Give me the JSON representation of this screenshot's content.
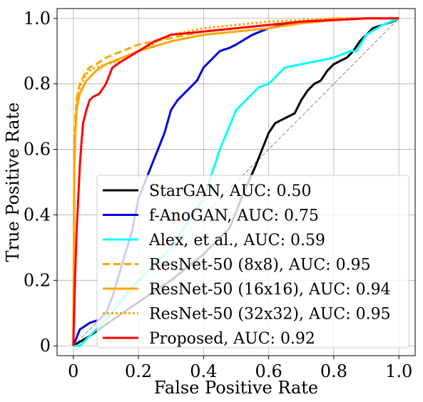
{
  "chart_data": {
    "type": "line",
    "title": "",
    "xlabel": "False Positive Rate",
    "ylabel": "True Positive Rate",
    "xlim": [
      -0.05,
      1.05
    ],
    "ylim": [
      -0.03,
      1.03
    ],
    "x_ticks": [
      0,
      0.2,
      0.4,
      0.6,
      0.8,
      1.0
    ],
    "x_tick_labels": [
      "0",
      "0.2",
      "0.4",
      "0.6",
      "0.8",
      "1.0"
    ],
    "y_ticks": [
      0,
      0.2,
      0.4,
      0.6,
      0.8,
      1.0
    ],
    "y_tick_labels": [
      "0",
      "0.2",
      "0.4",
      "0.6",
      "0.8",
      "1.0"
    ],
    "grid": true,
    "legend_position": "lower-right",
    "diagonal": {
      "x": [
        0,
        1
      ],
      "y": [
        0,
        1
      ],
      "color": "#808080",
      "dash": "dashed"
    },
    "series": [
      {
        "name": "StarGAN, AUC: 0.50",
        "color": "#000000",
        "dash": "solid",
        "x": [
          0,
          0.05,
          0.15,
          0.3,
          0.4,
          0.48,
          0.52,
          0.56,
          0.58,
          0.6,
          0.62,
          0.64,
          0.68,
          0.7,
          0.72,
          0.74,
          0.76,
          0.78,
          0.8,
          0.82,
          0.84,
          0.86,
          0.88,
          0.9,
          0.92,
          0.95,
          0.98,
          1.0
        ],
        "y": [
          0,
          0.03,
          0.1,
          0.2,
          0.28,
          0.36,
          0.46,
          0.55,
          0.6,
          0.65,
          0.68,
          0.69,
          0.71,
          0.75,
          0.78,
          0.8,
          0.81,
          0.84,
          0.86,
          0.87,
          0.88,
          0.9,
          0.93,
          0.95,
          0.97,
          0.98,
          0.99,
          1.0
        ]
      },
      {
        "name": "f-AnoGAN, AUC: 0.75",
        "color": "#0000e6",
        "dash": "solid",
        "x": [
          0,
          0.02,
          0.05,
          0.08,
          0.1,
          0.12,
          0.15,
          0.18,
          0.2,
          0.22,
          0.24,
          0.26,
          0.28,
          0.3,
          0.32,
          0.35,
          0.38,
          0.4,
          0.42,
          0.45,
          0.48,
          0.5,
          0.55,
          0.6,
          0.7,
          0.8,
          0.9,
          1.0
        ],
        "y": [
          0,
          0.05,
          0.07,
          0.08,
          0.1,
          0.15,
          0.25,
          0.35,
          0.45,
          0.5,
          0.55,
          0.6,
          0.65,
          0.72,
          0.75,
          0.78,
          0.81,
          0.85,
          0.87,
          0.9,
          0.91,
          0.92,
          0.95,
          0.97,
          0.99,
          0.995,
          1.0,
          1.0
        ]
      },
      {
        "name": "Alex, et al., AUC: 0.59",
        "color": "#00ffff",
        "dash": "solid",
        "x": [
          0,
          0.02,
          0.05,
          0.1,
          0.2,
          0.3,
          0.4,
          0.45,
          0.5,
          0.55,
          0.57,
          0.6,
          0.65,
          0.7,
          0.75,
          0.8,
          0.85,
          0.87,
          0.9,
          0.95,
          1.0
        ],
        "y": [
          0,
          0.0,
          0.03,
          0.08,
          0.2,
          0.3,
          0.45,
          0.6,
          0.72,
          0.77,
          0.79,
          0.8,
          0.85,
          0.86,
          0.87,
          0.88,
          0.9,
          0.9,
          0.95,
          0.98,
          1.0
        ]
      },
      {
        "name": "ResNet-50 (8x8), AUC: 0.95",
        "color": "#ffa500",
        "dash": "dashed",
        "x": [
          0,
          0.003,
          0.006,
          0.01,
          0.015,
          0.02,
          0.03,
          0.04,
          0.05,
          0.07,
          0.1,
          0.15,
          0.2,
          0.3,
          0.4,
          0.5,
          0.6,
          0.7,
          0.8,
          0.9,
          1.0
        ],
        "y": [
          0,
          0.62,
          0.7,
          0.75,
          0.78,
          0.8,
          0.82,
          0.84,
          0.85,
          0.86,
          0.88,
          0.9,
          0.92,
          0.94,
          0.96,
          0.97,
          0.98,
          0.99,
          1.0,
          1.0,
          1.0
        ]
      },
      {
        "name": "ResNet-50 (16x16), AUC: 0.94",
        "color": "#ffa500",
        "dash": "solid",
        "x": [
          0,
          0.003,
          0.006,
          0.01,
          0.015,
          0.02,
          0.03,
          0.04,
          0.05,
          0.07,
          0.1,
          0.15,
          0.2,
          0.3,
          0.4,
          0.5,
          0.6,
          0.7,
          0.8,
          0.9,
          1.0
        ],
        "y": [
          0,
          0.55,
          0.65,
          0.72,
          0.75,
          0.77,
          0.79,
          0.81,
          0.82,
          0.84,
          0.86,
          0.88,
          0.9,
          0.93,
          0.95,
          0.96,
          0.97,
          0.985,
          0.995,
          1.0,
          1.0
        ]
      },
      {
        "name": "ResNet-50 (32x32), AUC: 0.95",
        "color": "#ffa500",
        "dash": "dotted",
        "x": [
          0,
          0.003,
          0.006,
          0.01,
          0.015,
          0.02,
          0.03,
          0.04,
          0.05,
          0.07,
          0.1,
          0.15,
          0.2,
          0.3,
          0.4,
          0.5,
          0.6,
          0.7,
          0.8,
          0.9,
          1.0
        ],
        "y": [
          0,
          0.6,
          0.68,
          0.74,
          0.77,
          0.79,
          0.81,
          0.83,
          0.84,
          0.85,
          0.86,
          0.87,
          0.9,
          0.95,
          0.97,
          0.98,
          0.99,
          0.995,
          1.0,
          1.0,
          1.0
        ]
      },
      {
        "name": "Proposed, AUC: 0.92",
        "color": "#ff0000",
        "dash": "solid",
        "x": [
          0,
          0.005,
          0.01,
          0.015,
          0.02,
          0.025,
          0.03,
          0.04,
          0.05,
          0.06,
          0.08,
          0.1,
          0.12,
          0.15,
          0.2,
          0.25,
          0.3,
          0.4,
          0.5,
          0.6,
          0.7,
          0.8,
          0.9,
          1.0
        ],
        "y": [
          0,
          0.2,
          0.35,
          0.45,
          0.55,
          0.62,
          0.68,
          0.72,
          0.75,
          0.76,
          0.77,
          0.8,
          0.85,
          0.87,
          0.9,
          0.93,
          0.95,
          0.96,
          0.97,
          0.98,
          0.99,
          0.995,
          1.0,
          1.0
        ]
      }
    ]
  }
}
